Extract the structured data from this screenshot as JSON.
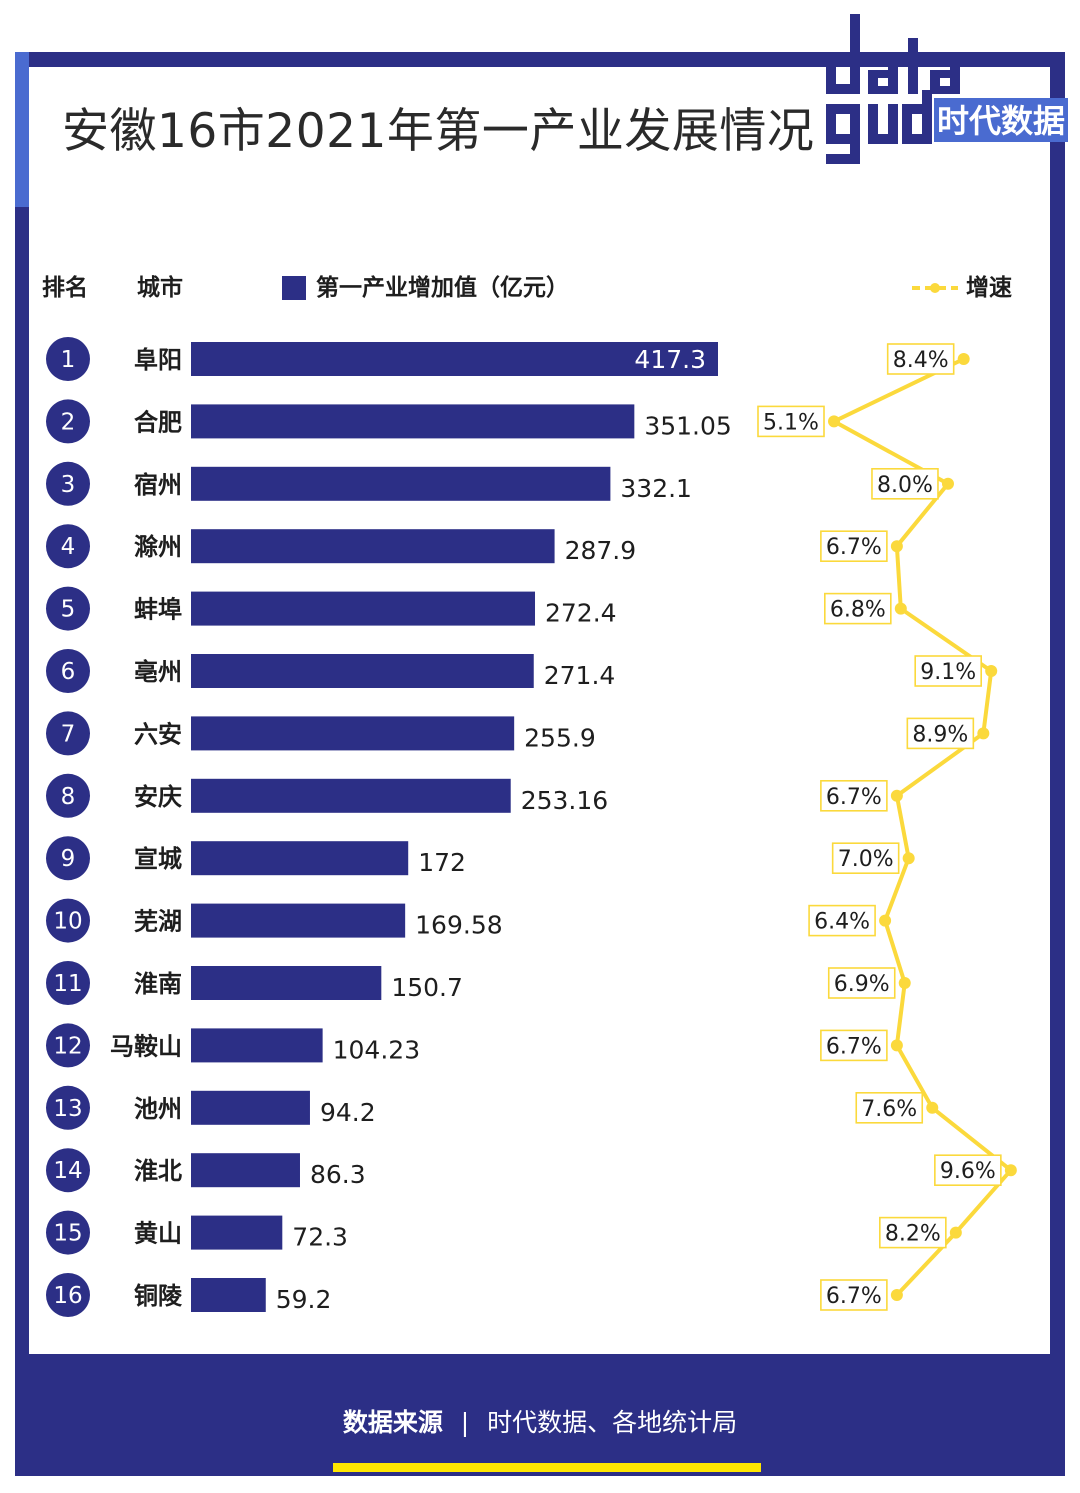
{
  "title": "安徽16市2021年第一产业发展情况",
  "logo": {
    "word": "data",
    "brand": "时代数据"
  },
  "headers": {
    "rank": "排名",
    "city": "城市",
    "bar_legend": "第一产业增加值（亿元）",
    "line_legend": "增速"
  },
  "footer": {
    "label": "数据来源",
    "separator": "|",
    "text": "时代数据、各地统计局"
  },
  "colors": {
    "navy": "#2c2f86",
    "yellow": "#fbd93c",
    "accent": "#4a6bd0"
  },
  "chart_data": {
    "type": "bar",
    "title": "安徽16市2021年第一产业发展情况",
    "orientation": "horizontal",
    "ranks": [
      "1",
      "2",
      "3",
      "4",
      "5",
      "6",
      "7",
      "8",
      "9",
      "10",
      "11",
      "12",
      "13",
      "14",
      "15",
      "16"
    ],
    "categories": [
      "阜阳",
      "合肥",
      "宿州",
      "滁州",
      "蚌埠",
      "亳州",
      "六安",
      "安庆",
      "宣城",
      "芜湖",
      "淮南",
      "马鞍山",
      "池州",
      "淮北",
      "黄山",
      "铜陵"
    ],
    "series": [
      {
        "name": "第一产业增加值（亿元）",
        "type": "bar",
        "values": [
          417.3,
          351.05,
          332.1,
          287.9,
          272.4,
          271.4,
          255.9,
          253.16,
          172,
          169.58,
          150.7,
          104.23,
          94.2,
          86.3,
          72.3,
          59.2
        ],
        "labels": [
          "417.3",
          "351.05",
          "332.1",
          "287.9",
          "272.4",
          "271.4",
          "255.9",
          "253.16",
          "172",
          "169.58",
          "150.7",
          "104.23",
          "94.2",
          "86.3",
          "72.3",
          "59.2"
        ]
      },
      {
        "name": "增速",
        "type": "line",
        "unit": "%",
        "values": [
          8.4,
          5.1,
          8.0,
          6.7,
          6.8,
          9.1,
          8.9,
          6.7,
          7.0,
          6.4,
          6.9,
          6.7,
          7.6,
          9.6,
          8.2,
          6.7
        ],
        "labels": [
          "8.4%",
          "5.1%",
          "8.0%",
          "6.7%",
          "6.8%",
          "9.1%",
          "8.9%",
          "6.7%",
          "7.0%",
          "6.4%",
          "6.9%",
          "6.7%",
          "7.6%",
          "9.6%",
          "8.2%",
          "6.7%"
        ]
      }
    ],
    "xlim": [
      0,
      420
    ],
    "grid": false,
    "legend": "top"
  }
}
